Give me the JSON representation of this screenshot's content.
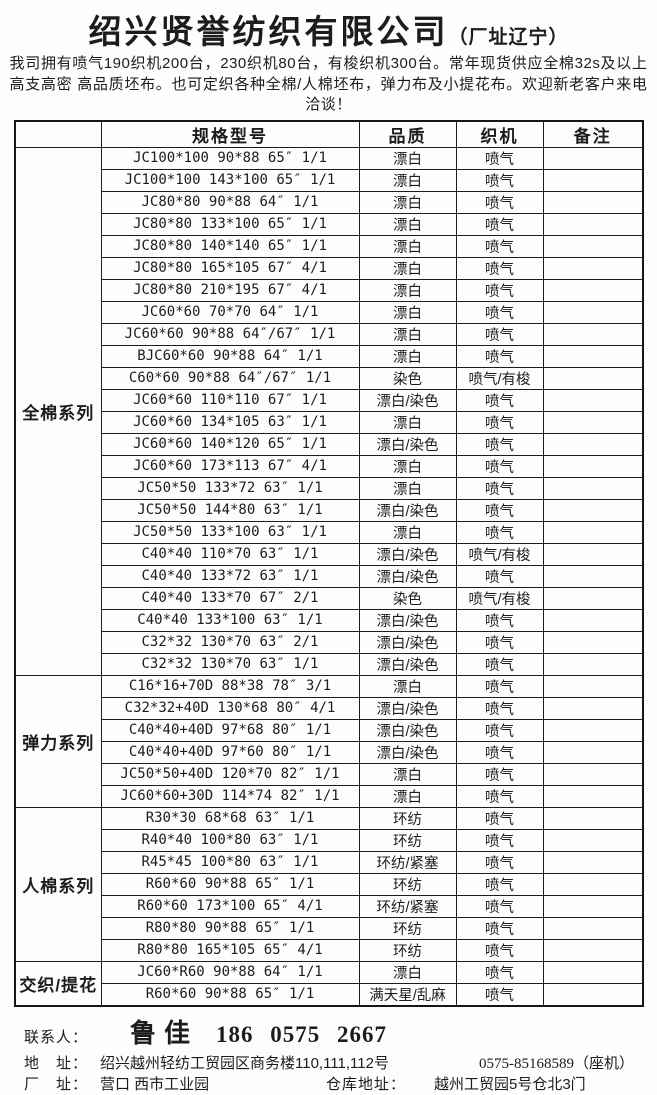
{
  "header": {
    "title": "绍兴贤誉纺织有限公司",
    "title_suffix": "（厂址辽宁）",
    "intro": "我司拥有喷气190织机200台，230织机80台，有梭织机300台。常年现货供应全棉32s及以上高支高密 高品质坯布。也可定织各种全棉/人棉坯布，弹力布及小提花布。欢迎新老客户来电洽谈！"
  },
  "table": {
    "columns": [
      "",
      "规格型号",
      "品质",
      "织机",
      "备注"
    ],
    "sections": [
      {
        "label": "全棉系列",
        "rows": [
          {
            "spec": "JC100*100 90*88 65″ 1/1",
            "quality": "漂白",
            "loom": "喷气",
            "note": ""
          },
          {
            "spec": "JC100*100 143*100 65″ 1/1",
            "quality": "漂白",
            "loom": "喷气",
            "note": ""
          },
          {
            "spec": "JC80*80 90*88 64″ 1/1",
            "quality": "漂白",
            "loom": "喷气",
            "note": ""
          },
          {
            "spec": "JC80*80 133*100 65″ 1/1",
            "quality": "漂白",
            "loom": "喷气",
            "note": ""
          },
          {
            "spec": "JC80*80 140*140 65″ 1/1",
            "quality": "漂白",
            "loom": "喷气",
            "note": ""
          },
          {
            "spec": "JC80*80 165*105 67″ 4/1",
            "quality": "漂白",
            "loom": "喷气",
            "note": ""
          },
          {
            "spec": "JC80*80 210*195 67″ 4/1",
            "quality": "漂白",
            "loom": "喷气",
            "note": ""
          },
          {
            "spec": "JC60*60 70*70 64″ 1/1",
            "quality": "漂白",
            "loom": "喷气",
            "note": ""
          },
          {
            "spec": "JC60*60 90*88 64″/67″ 1/1",
            "quality": "漂白",
            "loom": "喷气",
            "note": ""
          },
          {
            "spec": "BJC60*60 90*88 64″ 1/1",
            "quality": "漂白",
            "loom": "喷气",
            "note": ""
          },
          {
            "spec": "C60*60 90*88 64″/67″ 1/1",
            "quality": "染色",
            "loom": "喷气/有梭",
            "note": ""
          },
          {
            "spec": "JC60*60 110*110 67″ 1/1",
            "quality": "漂白/染色",
            "loom": "喷气",
            "note": ""
          },
          {
            "spec": "JC60*60 134*105 63″ 1/1",
            "quality": "漂白",
            "loom": "喷气",
            "note": ""
          },
          {
            "spec": "JC60*60 140*120 65″ 1/1",
            "quality": "漂白/染色",
            "loom": "喷气",
            "note": ""
          },
          {
            "spec": "JC60*60 173*113 67″ 4/1",
            "quality": "漂白",
            "loom": "喷气",
            "note": ""
          },
          {
            "spec": "JC50*50 133*72 63″ 1/1",
            "quality": "漂白",
            "loom": "喷气",
            "note": ""
          },
          {
            "spec": "JC50*50 144*80 63″ 1/1",
            "quality": "漂白/染色",
            "loom": "喷气",
            "note": ""
          },
          {
            "spec": "JC50*50 133*100 63″ 1/1",
            "quality": "漂白",
            "loom": "喷气",
            "note": ""
          },
          {
            "spec": "C40*40 110*70 63″ 1/1",
            "quality": "漂白/染色",
            "loom": "喷气/有梭",
            "note": ""
          },
          {
            "spec": "C40*40 133*72 63″ 1/1",
            "quality": "漂白/染色",
            "loom": "喷气",
            "note": ""
          },
          {
            "spec": "C40*40 133*70 67″ 2/1",
            "quality": "染色",
            "loom": "喷气/有梭",
            "note": ""
          },
          {
            "spec": "C40*40 133*100 63″ 1/1",
            "quality": "漂白/染色",
            "loom": "喷气",
            "note": ""
          },
          {
            "spec": "C32*32 130*70 63″ 2/1",
            "quality": "漂白/染色",
            "loom": "喷气",
            "note": ""
          },
          {
            "spec": "C32*32 130*70 63″ 1/1",
            "quality": "漂白/染色",
            "loom": "喷气",
            "note": ""
          }
        ]
      },
      {
        "label": "弹力系列",
        "rows": [
          {
            "spec": "C16*16+70D 88*38 78″ 3/1",
            "quality": "漂白",
            "loom": "喷气",
            "note": ""
          },
          {
            "spec": "C32*32+40D 130*68 80″ 4/1",
            "quality": "漂白/染色",
            "loom": "喷气",
            "note": ""
          },
          {
            "spec": "C40*40+40D 97*68 80″ 1/1",
            "quality": "漂白/染色",
            "loom": "喷气",
            "note": ""
          },
          {
            "spec": "C40*40+40D 97*60 80″ 1/1",
            "quality": "漂白/染色",
            "loom": "喷气",
            "note": ""
          },
          {
            "spec": "JC50*50+40D 120*70 82″ 1/1",
            "quality": "漂白",
            "loom": "喷气",
            "note": ""
          },
          {
            "spec": "JC60*60+30D 114*74 82″ 1/1",
            "quality": "漂白",
            "loom": "喷气",
            "note": ""
          }
        ]
      },
      {
        "label": "人棉系列",
        "rows": [
          {
            "spec": "R30*30 68*68 63″ 1/1",
            "quality": "环纺",
            "loom": "喷气",
            "note": ""
          },
          {
            "spec": "R40*40 100*80 63″ 1/1",
            "quality": "环纺",
            "loom": "喷气",
            "note": ""
          },
          {
            "spec": "R45*45 100*80 63″ 1/1",
            "quality": "环纺/紧塞",
            "loom": "喷气",
            "note": ""
          },
          {
            "spec": "R60*60 90*88 65″ 1/1",
            "quality": "环纺",
            "loom": "喷气",
            "note": ""
          },
          {
            "spec": "R60*60 173*100 65″ 4/1",
            "quality": "环纺/紧塞",
            "loom": "喷气",
            "note": ""
          },
          {
            "spec": "R80*80 90*88 65″ 1/1",
            "quality": "环纺",
            "loom": "喷气",
            "note": ""
          },
          {
            "spec": "R80*80 165*105 65″ 4/1",
            "quality": "环纺",
            "loom": "喷气",
            "note": ""
          }
        ]
      },
      {
        "label": "交织/提花",
        "rows": [
          {
            "spec": "JC60*R60 90*88 64″ 1/1",
            "quality": "漂白",
            "loom": "喷气",
            "note": ""
          },
          {
            "spec": "R60*60 90*88 65″ 1/1",
            "quality": "满天星/乱麻",
            "loom": "喷气",
            "note": ""
          }
        ]
      }
    ]
  },
  "footer": {
    "contact_label": "联系人：",
    "contact_name": "鲁佳",
    "contact_phone": "186 0575 2667",
    "address_label": "地　址：",
    "address_value": "绍兴越州轻纺工贸园区商务楼110,111,112号",
    "landline": "0575-85168589（座机）",
    "factory_label": "厂　址：",
    "factory_value": "营口 西市工业园",
    "warehouse_label": "仓库地址：",
    "warehouse_value": "越州工贸园5号仓北3门"
  }
}
